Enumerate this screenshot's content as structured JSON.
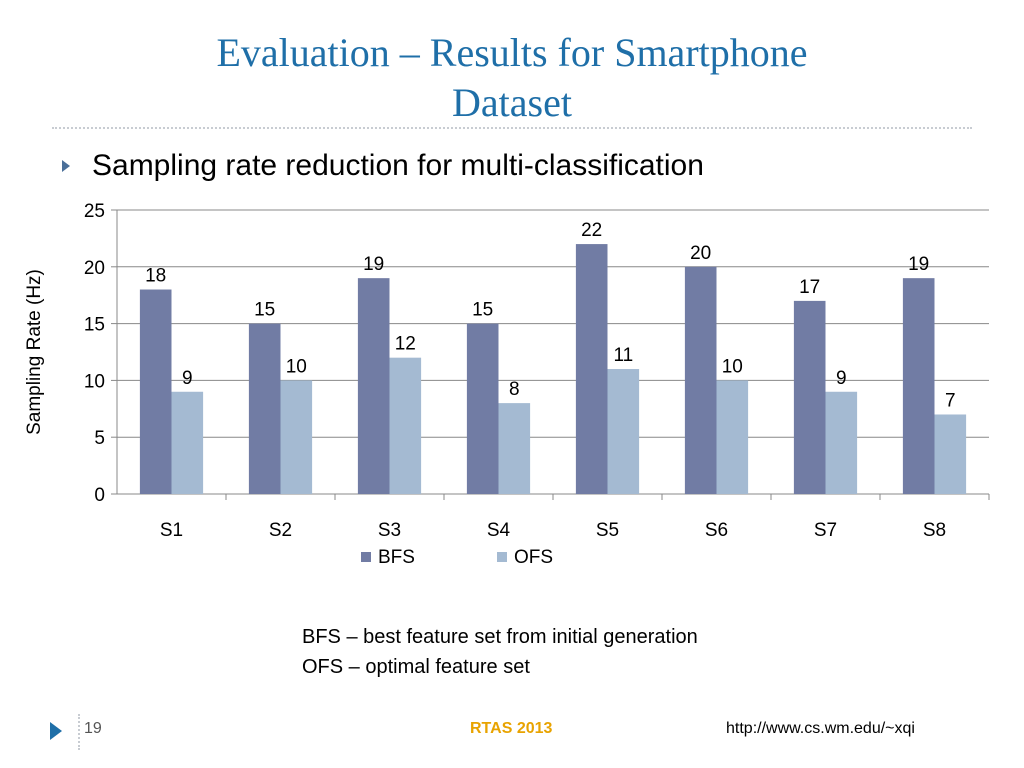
{
  "slide": {
    "title_line1": "Evaluation – Results for Smartphone",
    "title_line2": "Dataset",
    "bullet": "Sampling rate reduction for multi-classification",
    "notes": [
      "BFS – best feature set from initial generation",
      "OFS – optimal feature set"
    ],
    "footer": {
      "page_number": "19",
      "center": "RTAS 2013",
      "right": "http://www.cs.wm.edu/~xqi"
    },
    "colors": {
      "title": "#1f6fa8",
      "bullet_marker": "#4a6f99",
      "footer_center": "#e8a300"
    }
  },
  "chart_data": {
    "type": "bar",
    "categories": [
      "S1",
      "S2",
      "S3",
      "S4",
      "S5",
      "S6",
      "S7",
      "S8"
    ],
    "series": [
      {
        "name": "BFS",
        "values": [
          18,
          15,
          19,
          15,
          22,
          20,
          17,
          19
        ],
        "color": "#717ca4"
      },
      {
        "name": "OFS",
        "values": [
          9,
          10,
          12,
          8,
          11,
          10,
          9,
          7
        ],
        "color": "#a4bad2"
      }
    ],
    "title": "",
    "xlabel": "",
    "ylabel": "Sampling Rate (Hz)",
    "ylim": [
      0,
      25
    ],
    "yticks": [
      0,
      5,
      10,
      15,
      20,
      25
    ],
    "grid": true,
    "data_labels": true,
    "legend": "bottom"
  }
}
